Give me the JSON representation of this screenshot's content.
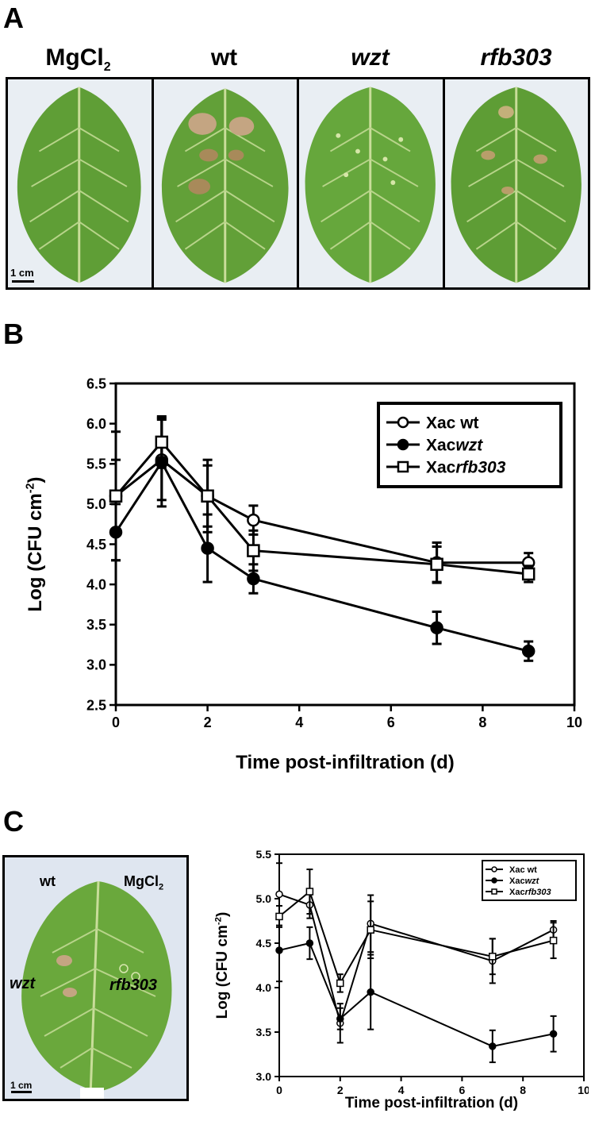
{
  "panels": {
    "a_letter": "A",
    "b_letter": "B",
    "c_letter": "C"
  },
  "leaves": [
    {
      "label": "MgCl",
      "sub": "2",
      "italic": false
    },
    {
      "label": "wt",
      "italic": false
    },
    {
      "label": "wzt",
      "italic": true
    },
    {
      "label": "rfb303",
      "italic": true
    }
  ],
  "scale_label": "1 cm",
  "photo_c": {
    "wt": "wt",
    "mgcl": "MgCl",
    "mgcl_sub": "2",
    "wzt": "wzt",
    "rfb303": "rfb303",
    "scale": "1 cm"
  },
  "colors": {
    "leaf": "#6aa83c",
    "leaf_dark": "#4f8a2a",
    "vein": "#c9dd9a",
    "lesion": "#c4a582",
    "background_photo": "#e9eef3"
  },
  "chart_data": [
    {
      "id": "B",
      "type": "line",
      "xlabel": "Time post-infiltration (d)",
      "ylabel_main": "Log (CFU cm",
      "ylabel_sup": "-2",
      "ylabel_end": ")",
      "xlim": [
        0,
        10
      ],
      "ylim": [
        2.5,
        6.5
      ],
      "xticks": [
        0,
        2,
        4,
        6,
        8,
        10
      ],
      "yticks": [
        2.5,
        3.0,
        3.5,
        4.0,
        4.5,
        5.0,
        5.5,
        6.0,
        6.5
      ],
      "ytick_labels": [
        "2.5",
        "3.0",
        "3.5",
        "4.0",
        "4.5",
        "5.0",
        "5.5",
        "6.0",
        "6.5"
      ],
      "legend_position": "top-right",
      "series": [
        {
          "name_main": "Xac wt",
          "name_italic": "",
          "marker": "open-circle",
          "x": [
            0,
            1,
            2,
            3,
            7,
            9
          ],
          "y": [
            5.1,
            5.55,
            5.1,
            4.8,
            4.27,
            4.27
          ],
          "err": [
            0.45,
            0.5,
            0.45,
            0.18,
            0.25,
            0.12
          ]
        },
        {
          "name_main": "Xac",
          "name_italic": "wzt",
          "marker": "filled-circle",
          "x": [
            0,
            1,
            2,
            3,
            7,
            9
          ],
          "y": [
            4.65,
            5.52,
            4.45,
            4.07,
            3.46,
            3.17
          ],
          "err": [
            0.35,
            0.55,
            0.42,
            0.18,
            0.2,
            0.12
          ]
        },
        {
          "name_main": "Xac",
          "name_italic": "rfb303",
          "marker": "open-square",
          "x": [
            0,
            1,
            2,
            3,
            7,
            9
          ],
          "y": [
            5.1,
            5.77,
            5.1,
            4.42,
            4.25,
            4.13
          ],
          "err": [
            0.8,
            0.32,
            0.38,
            0.25,
            0.22,
            0.1
          ]
        }
      ]
    },
    {
      "id": "C",
      "type": "line",
      "xlabel": "Time post-infiltration (d)",
      "ylabel_main": "Log (CFU cm",
      "ylabel_sup": "-2",
      "ylabel_end": ")",
      "xlim": [
        0,
        10
      ],
      "ylim": [
        3.0,
        5.5
      ],
      "xticks": [
        0,
        2,
        4,
        6,
        8,
        10
      ],
      "yticks": [
        3.0,
        3.5,
        4.0,
        4.5,
        5.0,
        5.5
      ],
      "ytick_labels": [
        "3.0",
        "3.5",
        "4.0",
        "4.5",
        "5.0",
        "5.5"
      ],
      "legend_position": "top-right",
      "series": [
        {
          "name_main": "Xac wt",
          "name_italic": "",
          "marker": "open-circle",
          "x": [
            0,
            1,
            2,
            3,
            7,
            9
          ],
          "y": [
            5.05,
            4.93,
            3.6,
            4.72,
            4.3,
            4.65
          ],
          "err": [
            0.35,
            0.15,
            0.22,
            0.32,
            0.25,
            0.1
          ]
        },
        {
          "name_main": "Xac",
          "name_italic": "wzt",
          "marker": "filled-circle",
          "x": [
            0,
            1,
            2,
            3,
            7,
            9
          ],
          "y": [
            4.42,
            4.5,
            3.65,
            3.95,
            3.34,
            3.48
          ],
          "err": [
            0.35,
            0.18,
            0.12,
            0.42,
            0.18,
            0.2
          ]
        },
        {
          "name_main": "Xac",
          "name_italic": "rfb303",
          "marker": "open-square",
          "x": [
            0,
            1,
            2,
            3,
            7,
            9
          ],
          "y": [
            4.8,
            5.08,
            4.05,
            4.65,
            4.35,
            4.53
          ],
          "err": [
            0.12,
            0.25,
            0.1,
            0.32,
            0.2,
            0.2
          ]
        }
      ]
    }
  ]
}
